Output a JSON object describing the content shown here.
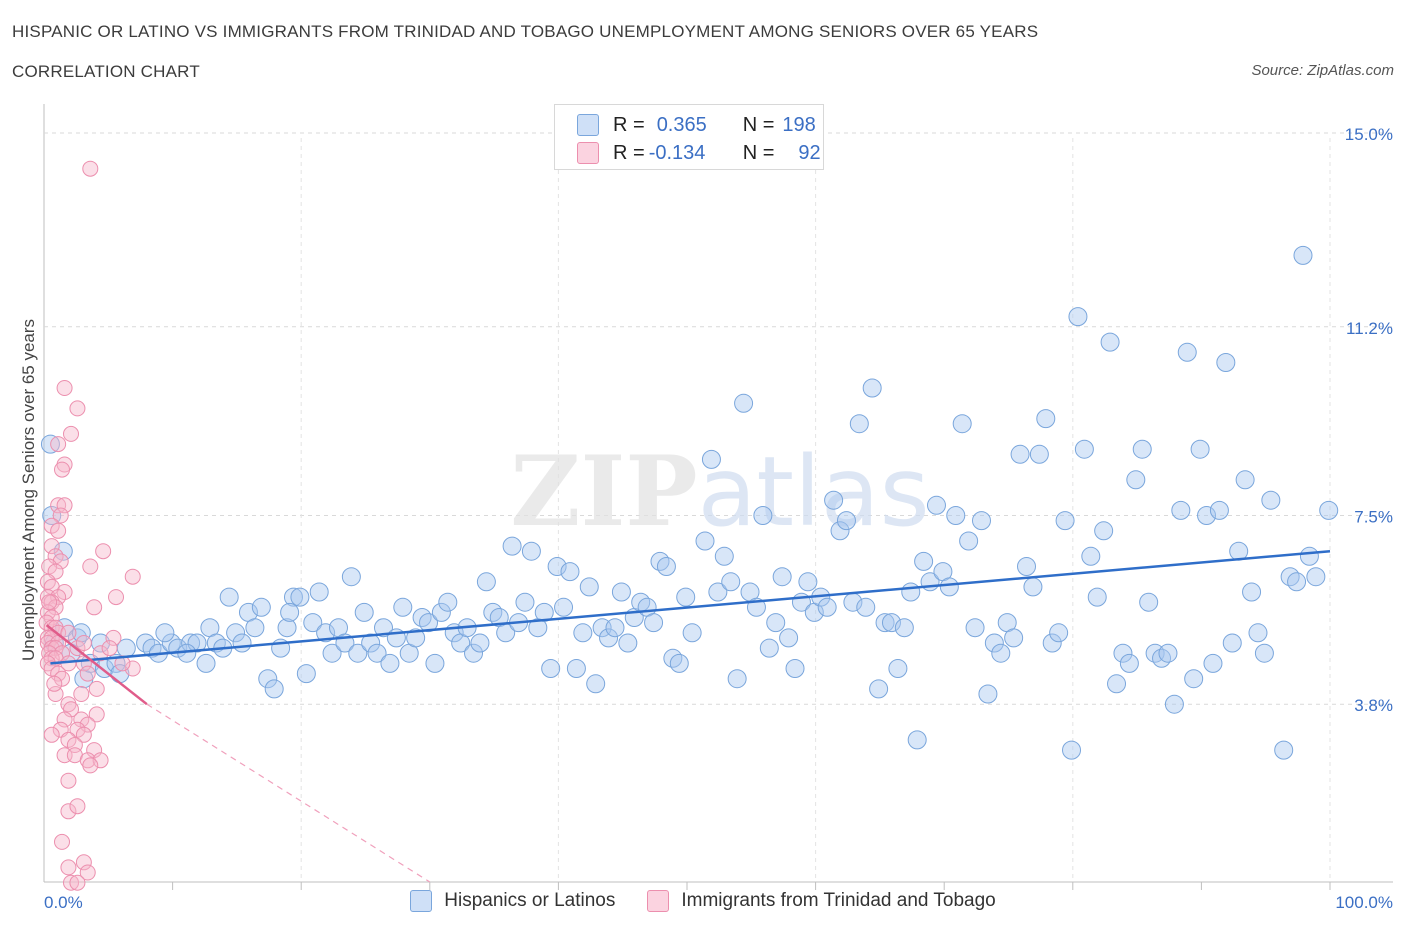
{
  "header": {
    "title": "HISPANIC OR LATINO VS IMMIGRANTS FROM TRINIDAD AND TOBAGO UNEMPLOYMENT AMONG SENIORS OVER 65 YEARS",
    "subtitle": "CORRELATION CHART",
    "source": "Source: ZipAtlas.com"
  },
  "legend": {
    "rows": [
      {
        "r_label": "R =",
        "r_value": "0.365",
        "n_label": "N =",
        "n_value": "198",
        "color": "#a8c8f0"
      },
      {
        "r_label": "R =",
        "r_value": "-0.134",
        "n_label": "N =",
        "n_value": "92",
        "color": "#f6b8cc"
      }
    ]
  },
  "watermark": "ZIPatlas",
  "chart_data": {
    "type": "scatter",
    "title": "HISPANIC OR LATINO VS IMMIGRANTS FROM TRINIDAD AND TOBAGO UNEMPLOYMENT AMONG SENIORS OVER 65 YEARS",
    "xlabel": "",
    "ylabel": "Unemployment Among Seniors over 65 years",
    "xlim": [
      0,
      100
    ],
    "ylim": [
      0,
      15
    ],
    "x_tick_labels": [
      "0.0%",
      "100.0%"
    ],
    "y_ticks": [
      3.8,
      7.5,
      11.2,
      15.0
    ],
    "y_tick_labels": [
      "3.8%",
      "7.5%",
      "11.2%",
      "15.0%"
    ],
    "grid": true,
    "legend_position": "bottom",
    "series": [
      {
        "name": "Hispanics or Latinos",
        "color": "#a8c8f0",
        "stroke": "#7aa6dc",
        "trend": {
          "x0": 0.5,
          "y0": 4.6,
          "x1": 100,
          "y1": 6.8,
          "color": "#2f6ec9"
        },
        "points": [
          [
            0.5,
            8.9
          ],
          [
            0.6,
            7.5
          ],
          [
            1.5,
            6.8
          ],
          [
            1.6,
            5.3
          ],
          [
            2.6,
            5.1
          ],
          [
            2.9,
            5.2
          ],
          [
            3.1,
            4.3
          ],
          [
            3.6,
            4.6
          ],
          [
            4.4,
            5.0
          ],
          [
            4.7,
            4.5
          ],
          [
            5.6,
            4.6
          ],
          [
            5.9,
            4.4
          ],
          [
            7.9,
            5.0
          ],
          [
            8.4,
            4.9
          ],
          [
            8.9,
            4.8
          ],
          [
            9.9,
            5.0
          ],
          [
            10.4,
            4.9
          ],
          [
            11.4,
            5.0
          ],
          [
            11.9,
            5.0
          ],
          [
            12.6,
            4.6
          ],
          [
            12.9,
            5.3
          ],
          [
            13.4,
            5.0
          ],
          [
            13.9,
            4.9
          ],
          [
            14.4,
            5.9
          ],
          [
            14.9,
            5.2
          ],
          [
            15.4,
            5.0
          ],
          [
            15.9,
            5.6
          ],
          [
            16.4,
            5.3
          ],
          [
            16.9,
            5.7
          ],
          [
            17.4,
            4.3
          ],
          [
            17.9,
            4.1
          ],
          [
            18.4,
            4.9
          ],
          [
            18.9,
            5.3
          ],
          [
            19.4,
            5.9
          ],
          [
            19.9,
            5.9
          ],
          [
            20.4,
            4.4
          ],
          [
            20.9,
            5.4
          ],
          [
            21.4,
            6.0
          ],
          [
            21.9,
            5.2
          ],
          [
            22.4,
            4.8
          ],
          [
            22.9,
            5.3
          ],
          [
            23.4,
            5.0
          ],
          [
            23.9,
            6.3
          ],
          [
            24.4,
            4.8
          ],
          [
            24.9,
            5.6
          ],
          [
            25.4,
            5.0
          ],
          [
            25.9,
            4.8
          ],
          [
            26.4,
            5.3
          ],
          [
            26.9,
            4.6
          ],
          [
            27.4,
            5.1
          ],
          [
            27.9,
            5.7
          ],
          [
            28.4,
            4.8
          ],
          [
            28.9,
            5.1
          ],
          [
            29.4,
            5.5
          ],
          [
            29.9,
            5.4
          ],
          [
            30.4,
            4.6
          ],
          [
            30.9,
            5.6
          ],
          [
            31.4,
            5.8
          ],
          [
            31.9,
            5.2
          ],
          [
            32.4,
            5.0
          ],
          [
            32.9,
            5.3
          ],
          [
            33.4,
            4.8
          ],
          [
            33.9,
            5.0
          ],
          [
            34.4,
            6.2
          ],
          [
            34.9,
            5.6
          ],
          [
            35.4,
            5.5
          ],
          [
            35.9,
            5.2
          ],
          [
            36.4,
            6.9
          ],
          [
            36.9,
            5.4
          ],
          [
            37.4,
            5.8
          ],
          [
            37.9,
            6.8
          ],
          [
            38.4,
            5.3
          ],
          [
            38.9,
            5.6
          ],
          [
            39.4,
            4.5
          ],
          [
            39.9,
            6.5
          ],
          [
            40.4,
            5.7
          ],
          [
            40.9,
            6.4
          ],
          [
            41.4,
            4.5
          ],
          [
            41.9,
            5.2
          ],
          [
            42.4,
            6.1
          ],
          [
            42.9,
            4.2
          ],
          [
            43.4,
            5.3
          ],
          [
            43.9,
            5.1
          ],
          [
            44.4,
            5.3
          ],
          [
            44.9,
            6.0
          ],
          [
            45.4,
            5.0
          ],
          [
            45.9,
            5.5
          ],
          [
            46.4,
            5.8
          ],
          [
            46.9,
            5.7
          ],
          [
            47.4,
            5.4
          ],
          [
            47.9,
            6.6
          ],
          [
            48.4,
            6.5
          ],
          [
            48.9,
            4.7
          ],
          [
            49.4,
            4.6
          ],
          [
            49.9,
            5.9
          ],
          [
            50.4,
            5.2
          ],
          [
            51.4,
            7.0
          ],
          [
            51.9,
            8.6
          ],
          [
            52.4,
            6.0
          ],
          [
            52.9,
            6.7
          ],
          [
            53.4,
            6.2
          ],
          [
            53.9,
            4.3
          ],
          [
            54.4,
            9.7
          ],
          [
            54.9,
            6.0
          ],
          [
            55.4,
            5.7
          ],
          [
            55.9,
            7.5
          ],
          [
            56.4,
            4.9
          ],
          [
            56.9,
            5.4
          ],
          [
            57.4,
            6.3
          ],
          [
            57.9,
            5.1
          ],
          [
            58.4,
            4.5
          ],
          [
            58.9,
            5.8
          ],
          [
            59.4,
            6.2
          ],
          [
            59.9,
            5.6
          ],
          [
            60.4,
            5.9
          ],
          [
            60.9,
            5.7
          ],
          [
            61.4,
            7.8
          ],
          [
            61.9,
            7.2
          ],
          [
            62.4,
            7.4
          ],
          [
            62.9,
            5.8
          ],
          [
            63.4,
            9.3
          ],
          [
            63.9,
            5.7
          ],
          [
            64.4,
            10.0
          ],
          [
            64.9,
            4.1
          ],
          [
            65.4,
            5.4
          ],
          [
            65.9,
            5.4
          ],
          [
            66.4,
            4.5
          ],
          [
            66.9,
            5.3
          ],
          [
            67.4,
            6.0
          ],
          [
            67.9,
            3.1
          ],
          [
            68.4,
            6.6
          ],
          [
            68.9,
            6.2
          ],
          [
            69.4,
            7.7
          ],
          [
            69.9,
            6.4
          ],
          [
            70.4,
            6.1
          ],
          [
            70.9,
            7.5
          ],
          [
            71.4,
            9.3
          ],
          [
            71.9,
            7.0
          ],
          [
            72.4,
            5.3
          ],
          [
            72.9,
            7.4
          ],
          [
            73.4,
            4.0
          ],
          [
            73.9,
            5.0
          ],
          [
            74.4,
            4.8
          ],
          [
            74.9,
            5.4
          ],
          [
            75.4,
            5.1
          ],
          [
            75.9,
            8.7
          ],
          [
            76.4,
            6.5
          ],
          [
            76.9,
            6.1
          ],
          [
            77.4,
            8.7
          ],
          [
            77.9,
            9.4
          ],
          [
            78.4,
            5.0
          ],
          [
            78.9,
            5.2
          ],
          [
            79.4,
            7.4
          ],
          [
            79.9,
            2.9
          ],
          [
            80.4,
            11.4
          ],
          [
            80.9,
            8.8
          ],
          [
            81.4,
            6.7
          ],
          [
            81.9,
            5.9
          ],
          [
            82.4,
            7.2
          ],
          [
            82.9,
            10.9
          ],
          [
            83.4,
            4.2
          ],
          [
            83.9,
            4.8
          ],
          [
            84.4,
            4.6
          ],
          [
            84.9,
            8.2
          ],
          [
            85.4,
            8.8
          ],
          [
            85.9,
            5.8
          ],
          [
            86.4,
            4.8
          ],
          [
            86.9,
            4.7
          ],
          [
            87.4,
            4.8
          ],
          [
            87.9,
            3.8
          ],
          [
            88.4,
            7.6
          ],
          [
            88.9,
            10.7
          ],
          [
            89.4,
            4.3
          ],
          [
            89.9,
            8.8
          ],
          [
            90.4,
            7.5
          ],
          [
            90.9,
            4.6
          ],
          [
            91.4,
            7.6
          ],
          [
            91.9,
            10.5
          ],
          [
            92.4,
            5.0
          ],
          [
            92.9,
            6.8
          ],
          [
            93.4,
            8.2
          ],
          [
            93.9,
            6.0
          ],
          [
            94.4,
            5.2
          ],
          [
            94.9,
            4.8
          ],
          [
            95.4,
            7.8
          ],
          [
            96.4,
            2.9
          ],
          [
            96.9,
            6.3
          ],
          [
            97.4,
            6.2
          ],
          [
            97.9,
            12.6
          ],
          [
            98.4,
            6.7
          ],
          [
            98.9,
            6.3
          ],
          [
            99.9,
            7.6
          ],
          [
            0.8,
            5.0
          ],
          [
            2.1,
            4.8
          ],
          [
            6.4,
            4.9
          ],
          [
            9.4,
            5.2
          ],
          [
            11.1,
            4.8
          ],
          [
            19.1,
            5.6
          ]
        ]
      },
      {
        "name": "Immigrants from Trinidad and Tobago",
        "color": "#f6b8cc",
        "stroke": "#ec8fae",
        "trend": {
          "x0": 0.2,
          "y0": 5.35,
          "x1": 8.0,
          "y1": 3.8,
          "color": "#e05c8a",
          "dash_to": {
            "x": 30.0,
            "y": -0.5
          }
        },
        "points": [
          [
            3.6,
            14.3
          ],
          [
            1.6,
            10.0
          ],
          [
            2.6,
            9.6
          ],
          [
            2.1,
            9.1
          ],
          [
            1.1,
            8.9
          ],
          [
            1.6,
            8.5
          ],
          [
            1.4,
            8.4
          ],
          [
            1.1,
            7.7
          ],
          [
            1.6,
            7.7
          ],
          [
            1.3,
            7.5
          ],
          [
            0.6,
            7.3
          ],
          [
            1.1,
            7.2
          ],
          [
            0.6,
            6.9
          ],
          [
            4.6,
            6.8
          ],
          [
            0.9,
            6.7
          ],
          [
            1.3,
            6.6
          ],
          [
            3.6,
            6.5
          ],
          [
            0.4,
            6.5
          ],
          [
            0.9,
            6.4
          ],
          [
            6.9,
            6.3
          ],
          [
            0.3,
            6.2
          ],
          [
            0.6,
            6.1
          ],
          [
            1.6,
            6.0
          ],
          [
            0.3,
            5.9
          ],
          [
            1.1,
            5.9
          ],
          [
            5.6,
            5.9
          ],
          [
            0.6,
            5.8
          ],
          [
            0.9,
            5.7
          ],
          [
            3.9,
            5.7
          ],
          [
            0.3,
            5.6
          ],
          [
            0.6,
            5.5
          ],
          [
            0.2,
            5.4
          ],
          [
            0.6,
            5.3
          ],
          [
            0.9,
            5.3
          ],
          [
            1.1,
            5.2
          ],
          [
            0.3,
            5.1
          ],
          [
            0.6,
            5.1
          ],
          [
            5.4,
            5.1
          ],
          [
            0.3,
            5.0
          ],
          [
            1.1,
            5.0
          ],
          [
            0.6,
            4.9
          ],
          [
            0.9,
            4.9
          ],
          [
            2.6,
            4.9
          ],
          [
            0.4,
            4.8
          ],
          [
            1.4,
            4.8
          ],
          [
            4.4,
            4.8
          ],
          [
            0.6,
            4.7
          ],
          [
            0.9,
            4.7
          ],
          [
            1.9,
            4.6
          ],
          [
            3.1,
            4.6
          ],
          [
            0.3,
            4.6
          ],
          [
            0.6,
            4.5
          ],
          [
            6.9,
            4.5
          ],
          [
            1.1,
            4.4
          ],
          [
            3.4,
            4.4
          ],
          [
            1.4,
            4.3
          ],
          [
            4.1,
            4.1
          ],
          [
            0.9,
            4.0
          ],
          [
            1.9,
            3.8
          ],
          [
            2.1,
            3.7
          ],
          [
            4.1,
            3.6
          ],
          [
            1.6,
            3.5
          ],
          [
            2.9,
            3.5
          ],
          [
            3.4,
            3.4
          ],
          [
            1.3,
            3.3
          ],
          [
            2.6,
            3.3
          ],
          [
            0.6,
            3.2
          ],
          [
            3.1,
            3.2
          ],
          [
            1.9,
            3.1
          ],
          [
            2.4,
            3.0
          ],
          [
            3.9,
            2.9
          ],
          [
            1.6,
            2.8
          ],
          [
            2.4,
            2.8
          ],
          [
            3.4,
            2.7
          ],
          [
            4.4,
            2.7
          ],
          [
            3.6,
            2.6
          ],
          [
            1.9,
            2.3
          ],
          [
            1.9,
            1.7
          ],
          [
            2.6,
            1.8
          ],
          [
            1.4,
            1.1
          ],
          [
            3.1,
            0.7
          ],
          [
            1.9,
            0.6
          ],
          [
            3.4,
            0.5
          ],
          [
            2.1,
            0.3
          ],
          [
            2.6,
            0.3
          ],
          [
            0.4,
            5.8
          ],
          [
            1.9,
            5.2
          ],
          [
            3.1,
            5.0
          ],
          [
            0.8,
            4.2
          ],
          [
            2.9,
            4.0
          ],
          [
            5.1,
            4.9
          ],
          [
            6.1,
            4.6
          ]
        ]
      }
    ]
  }
}
